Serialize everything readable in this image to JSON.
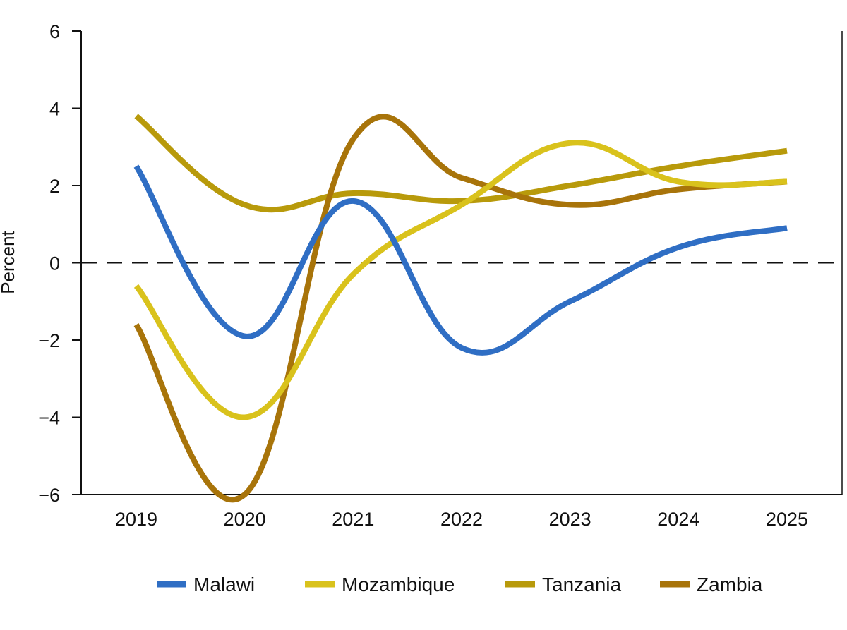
{
  "chart_data": {
    "type": "line",
    "title": "",
    "xlabel": "",
    "ylabel": "Percent",
    "x": [
      2019,
      2020,
      2021,
      2022,
      2023,
      2024,
      2025
    ],
    "x_tick_labels": [
      "2019",
      "2020",
      "2021",
      "2022",
      "2023",
      "2024",
      "2025"
    ],
    "ylim": [
      -6,
      6
    ],
    "y_ticks": [
      -6,
      -4,
      -2,
      0,
      2,
      4,
      6
    ],
    "y_tick_labels": [
      "−6",
      "−4",
      "−2",
      "0",
      "2",
      "4",
      "6"
    ],
    "reference_line": {
      "y": 0,
      "style": "dashed"
    },
    "grid": false,
    "legend_position": "bottom",
    "smoothed": true,
    "series": [
      {
        "name": "Malawi",
        "color": "#2f6ec4",
        "values": [
          2.5,
          -1.9,
          1.6,
          -2.2,
          -1.0,
          0.4,
          0.9
        ]
      },
      {
        "name": "Mozambique",
        "color": "#d9c21c",
        "values": [
          -0.6,
          -4.0,
          -0.3,
          1.5,
          3.1,
          2.1,
          2.1
        ]
      },
      {
        "name": "Tanzania",
        "color": "#b89a0b",
        "values": [
          3.8,
          1.5,
          1.8,
          1.6,
          2.0,
          2.5,
          2.9
        ]
      },
      {
        "name": "Zambia",
        "color": "#a8740a",
        "values": [
          -1.6,
          -6.0,
          3.2,
          2.2,
          1.5,
          1.9,
          2.1
        ]
      }
    ]
  }
}
